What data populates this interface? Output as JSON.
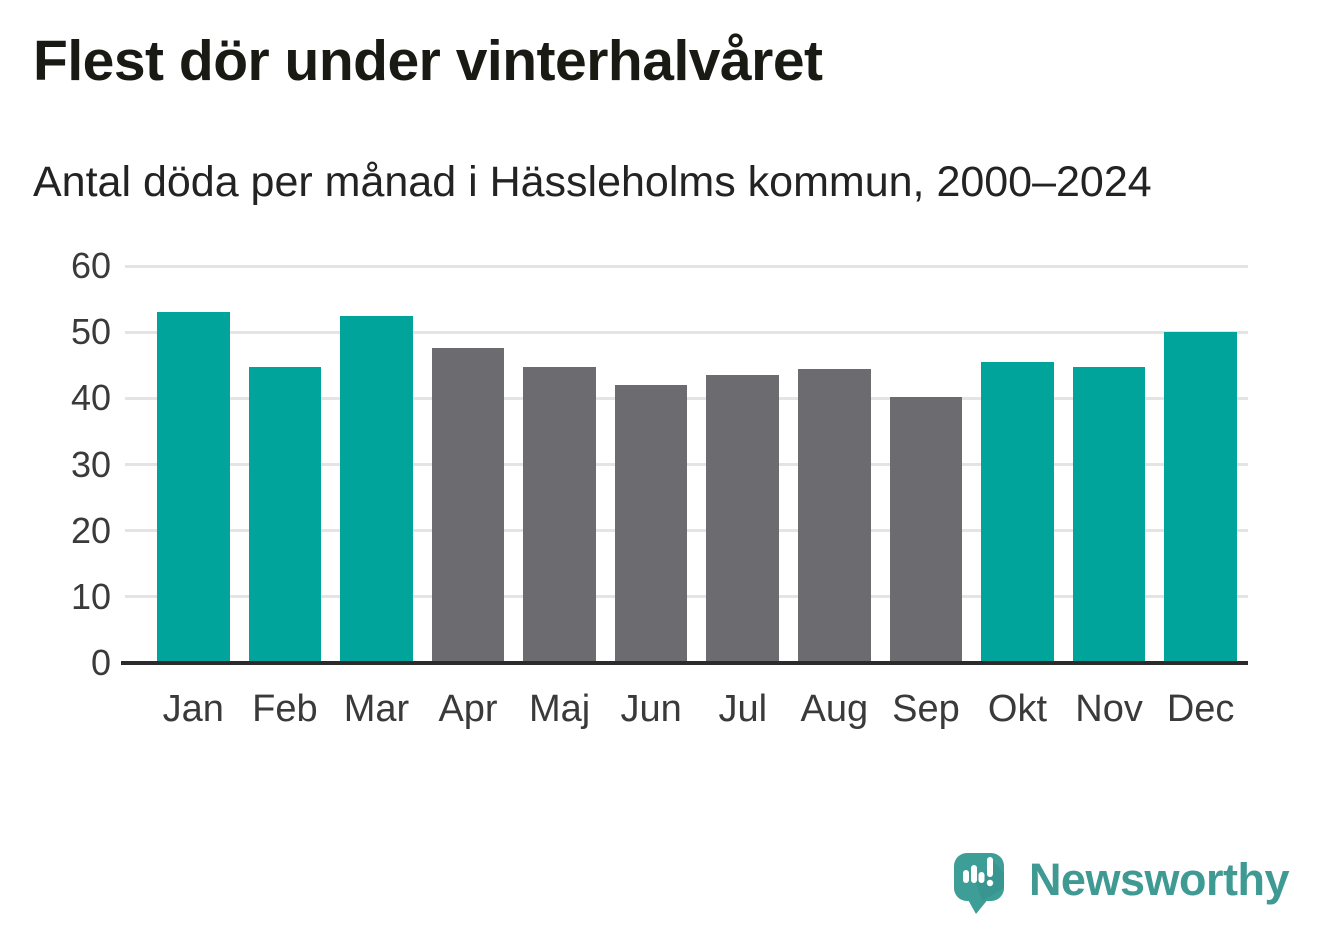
{
  "header": {
    "title": "Flest dör under vinterhalvåret",
    "subtitle": "Antal döda per månad i Hässleholms kommun, 2000–2024"
  },
  "chart_data": {
    "type": "bar",
    "title": "Flest dör under vinterhalvåret",
    "subtitle": "Antal döda per månad i Hässleholms kommun, 2000–2024",
    "categories": [
      "Jan",
      "Feb",
      "Mar",
      "Apr",
      "Maj",
      "Jun",
      "Jul",
      "Aug",
      "Sep",
      "Okt",
      "Nov",
      "Dec"
    ],
    "values": [
      53,
      44.8,
      52.5,
      47.6,
      44.7,
      42,
      43.5,
      44.5,
      40.2,
      45.5,
      44.8,
      50
    ],
    "highlighted": [
      true,
      true,
      true,
      false,
      false,
      false,
      false,
      false,
      false,
      true,
      true,
      true
    ],
    "highlight_color": "#00a49b",
    "bar_color": "#6c6c70",
    "xlabel": "",
    "ylabel": "",
    "ylim": [
      0,
      60
    ],
    "yticks": [
      0,
      10,
      20,
      30,
      40,
      50,
      60
    ],
    "grid": true,
    "gridline_color": "#e4e4e4",
    "axis_color": "#2b2b2b",
    "legend": "none"
  },
  "footer": {
    "brand": "Newsworthy",
    "brand_color": "#3f9a94",
    "logo_icon": "speech-bubble-bar-chart-exclamation"
  }
}
